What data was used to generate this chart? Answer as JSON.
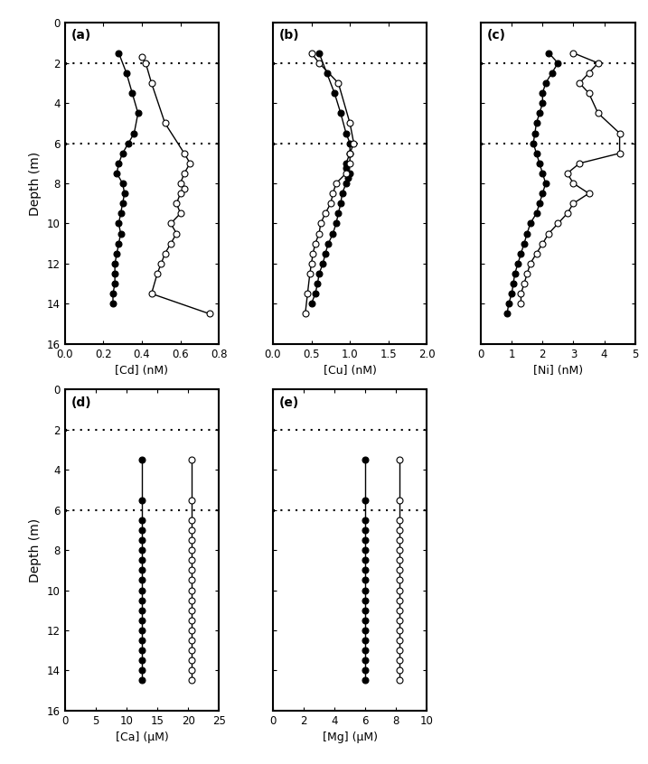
{
  "panels": {
    "a": {
      "label": "(a)",
      "xlabel": "[Cd] (nM)",
      "xlim": [
        0.0,
        0.8
      ],
      "xticks": [
        0.0,
        0.2,
        0.4,
        0.6,
        0.8
      ],
      "dgt_depth": [
        1.5,
        2.5,
        3.5,
        4.5,
        5.5,
        6.0,
        6.5,
        7.0,
        7.5,
        8.0,
        8.5,
        9.0,
        9.5,
        10.0,
        10.5,
        11.0,
        11.5,
        12.0,
        12.5,
        13.0,
        13.5,
        14.0
      ],
      "dgt_values": [
        0.28,
        0.32,
        0.35,
        0.38,
        0.36,
        0.33,
        0.3,
        0.28,
        0.27,
        0.3,
        0.31,
        0.3,
        0.29,
        0.28,
        0.29,
        0.28,
        0.27,
        0.26,
        0.26,
        0.26,
        0.25,
        0.25
      ],
      "dialysis_depth": [
        1.7,
        2.0,
        3.0,
        5.0,
        6.5,
        7.0,
        7.5,
        8.0,
        8.25,
        8.5,
        9.0,
        9.5,
        10.0,
        10.5,
        11.0,
        11.5,
        12.0,
        12.5,
        13.5,
        14.5
      ],
      "dialysis_values": [
        0.4,
        0.42,
        0.45,
        0.52,
        0.62,
        0.65,
        0.62,
        0.6,
        0.62,
        0.6,
        0.58,
        0.6,
        0.55,
        0.58,
        0.55,
        0.52,
        0.5,
        0.48,
        0.45,
        0.75
      ]
    },
    "b": {
      "label": "(b)",
      "xlabel": "[Cu] (nM)",
      "xlim": [
        0.0,
        2.0
      ],
      "xticks": [
        0.0,
        0.5,
        1.0,
        1.5,
        2.0
      ],
      "dgt_depth": [
        1.5,
        2.5,
        3.5,
        4.5,
        5.5,
        6.0,
        6.5,
        7.0,
        7.25,
        7.5,
        7.75,
        8.0,
        8.5,
        9.0,
        9.5,
        10.0,
        10.5,
        11.0,
        11.5,
        12.0,
        12.5,
        13.0,
        13.5,
        14.0
      ],
      "dgt_values": [
        0.6,
        0.7,
        0.8,
        0.88,
        0.95,
        1.0,
        1.0,
        0.95,
        0.95,
        1.0,
        0.98,
        0.95,
        0.9,
        0.88,
        0.85,
        0.82,
        0.78,
        0.72,
        0.68,
        0.65,
        0.6,
        0.58,
        0.55,
        0.5
      ],
      "dialysis_depth": [
        1.5,
        2.0,
        3.0,
        5.0,
        6.0,
        6.5,
        7.0,
        7.5,
        8.0,
        8.5,
        9.0,
        9.5,
        10.0,
        10.5,
        11.0,
        11.5,
        12.0,
        12.5,
        13.5,
        14.5
      ],
      "dialysis_values": [
        0.5,
        0.6,
        0.85,
        1.0,
        1.05,
        1.0,
        1.0,
        0.95,
        0.82,
        0.78,
        0.75,
        0.68,
        0.62,
        0.6,
        0.55,
        0.52,
        0.5,
        0.48,
        0.45,
        0.42
      ]
    },
    "c": {
      "label": "(c)",
      "xlabel": "[Ni] (nM)",
      "xlim": [
        0,
        5
      ],
      "xticks": [
        0,
        1,
        2,
        3,
        4,
        5
      ],
      "dgt_depth": [
        1.5,
        2.0,
        2.5,
        3.0,
        3.5,
        4.0,
        4.5,
        5.0,
        5.5,
        6.0,
        6.5,
        7.0,
        7.5,
        8.0,
        8.5,
        9.0,
        9.5,
        10.0,
        10.5,
        11.0,
        11.5,
        12.0,
        12.5,
        13.0,
        13.5,
        14.0,
        14.5
      ],
      "dgt_values": [
        2.2,
        2.5,
        2.3,
        2.1,
        2.0,
        2.0,
        1.9,
        1.8,
        1.75,
        1.7,
        1.8,
        1.9,
        2.0,
        2.1,
        2.0,
        1.9,
        1.8,
        1.6,
        1.5,
        1.4,
        1.3,
        1.2,
        1.1,
        1.05,
        1.0,
        0.9,
        0.85
      ],
      "dialysis_depth": [
        1.5,
        2.0,
        2.5,
        3.0,
        3.5,
        4.5,
        5.5,
        6.5,
        7.0,
        7.5,
        8.0,
        8.5,
        9.0,
        9.5,
        10.0,
        10.5,
        11.0,
        11.5,
        12.0,
        12.5,
        13.0,
        13.5,
        14.0
      ],
      "dialysis_values": [
        3.0,
        3.8,
        3.5,
        3.2,
        3.5,
        3.8,
        4.5,
        4.5,
        3.2,
        2.8,
        3.0,
        3.5,
        3.0,
        2.8,
        2.5,
        2.2,
        2.0,
        1.8,
        1.6,
        1.5,
        1.4,
        1.3,
        1.3
      ]
    },
    "d": {
      "label": "(d)",
      "xlabel": "[Ca] (μM)",
      "xlim": [
        0,
        25
      ],
      "xticks": [
        0,
        5,
        10,
        15,
        20,
        25
      ],
      "dgt_depth": [
        3.5,
        5.5,
        6.5,
        7.0,
        7.5,
        8.0,
        8.5,
        9.0,
        9.5,
        10.0,
        10.5,
        11.0,
        11.5,
        12.0,
        12.5,
        13.0,
        13.5,
        14.0,
        14.5
      ],
      "dgt_values": [
        12.5,
        12.5,
        12.5,
        12.5,
        12.5,
        12.5,
        12.5,
        12.5,
        12.5,
        12.5,
        12.5,
        12.5,
        12.5,
        12.5,
        12.5,
        12.5,
        12.5,
        12.5,
        12.5
      ],
      "dialysis_depth": [
        3.5,
        5.5,
        6.5,
        7.0,
        7.5,
        8.0,
        8.5,
        9.0,
        9.5,
        10.0,
        10.5,
        11.0,
        11.5,
        12.0,
        12.5,
        13.0,
        13.5,
        14.0,
        14.5
      ],
      "dialysis_values": [
        20.5,
        20.5,
        20.5,
        20.5,
        20.5,
        20.5,
        20.5,
        20.5,
        20.5,
        20.5,
        20.5,
        20.5,
        20.5,
        20.5,
        20.5,
        20.5,
        20.5,
        20.5,
        20.5
      ]
    },
    "e": {
      "label": "(e)",
      "xlabel": "[Mg] (μM)",
      "xlim": [
        0,
        10
      ],
      "xticks": [
        0,
        2,
        4,
        6,
        8,
        10
      ],
      "dgt_depth": [
        3.5,
        5.5,
        6.5,
        7.0,
        7.5,
        8.0,
        8.5,
        9.0,
        9.5,
        10.0,
        10.5,
        11.0,
        11.5,
        12.0,
        12.5,
        13.0,
        13.5,
        14.0,
        14.5
      ],
      "dgt_values": [
        6.0,
        6.0,
        6.0,
        6.0,
        6.0,
        6.0,
        6.0,
        6.0,
        6.0,
        6.0,
        6.0,
        6.0,
        6.0,
        6.0,
        6.0,
        6.0,
        6.0,
        6.0,
        6.0
      ],
      "dialysis_depth": [
        3.5,
        5.5,
        6.5,
        7.0,
        7.5,
        8.0,
        8.5,
        9.0,
        9.5,
        10.0,
        10.5,
        11.0,
        11.5,
        12.0,
        12.5,
        13.0,
        13.5,
        14.0,
        14.5
      ],
      "dialysis_values": [
        8.2,
        8.2,
        8.2,
        8.2,
        8.2,
        8.2,
        8.2,
        8.2,
        8.2,
        8.2,
        8.2,
        8.2,
        8.2,
        8.2,
        8.2,
        8.2,
        8.2,
        8.2,
        8.2
      ]
    }
  },
  "ylim": [
    0,
    16
  ],
  "yticks": [
    0,
    2,
    4,
    6,
    8,
    10,
    12,
    14,
    16
  ],
  "ylabel": "Depth (m)",
  "dotted_lines": [
    2.0,
    6.0
  ],
  "markersize": 5,
  "linewidth": 1.0
}
